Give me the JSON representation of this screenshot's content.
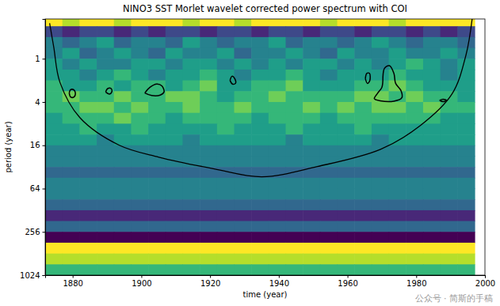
{
  "chart_data": {
    "type": "heatmap",
    "title": "NINO3 SST Morlet wavelet corrected power spectrum with COI",
    "x_label": "time (year)",
    "y_label": "period (year)",
    "annotations": [
      "公众号 · 简斯的手稿"
    ],
    "log": "y",
    "xlim": [
      1872,
      2000
    ],
    "ylim": [
      0.28,
      1024
    ],
    "xticks": [
      1880,
      1900,
      1920,
      1940,
      1960,
      1980,
      2000
    ],
    "yticks": [
      1,
      4,
      16,
      64,
      256,
      1024
    ],
    "zlim": [
      0,
      9
    ],
    "x": [
      1874.5,
      1879.5,
      1884.5,
      1889.5,
      1894.5,
      1899.5,
      1904.5,
      1909.5,
      1914.5,
      1919.5,
      1924.5,
      1929.5,
      1934.5,
      1939.5,
      1944.5,
      1949.5,
      1954.5,
      1959.5,
      1964.5,
      1969.5,
      1974.5,
      1979.5,
      1984.5,
      1989.5,
      1994.5
    ],
    "y": [
      0.297,
      0.42,
      0.595,
      0.841,
      1.19,
      1.68,
      2.38,
      3.36,
      4.76,
      6.73,
      9.51,
      13.5,
      19.0,
      26.9,
      38.1,
      53.8,
      76.1,
      108,
      152,
      215,
      304,
      431,
      609,
      861
    ],
    "z": [
      [
        9,
        8,
        9,
        9,
        8,
        9,
        9,
        9,
        8,
        9,
        9,
        8,
        9,
        9,
        9,
        9,
        8,
        9,
        9,
        9,
        8,
        9,
        9,
        9,
        9
      ],
      [
        2,
        1,
        2,
        2,
        1,
        2,
        1,
        2,
        2,
        1,
        2,
        2,
        1,
        2,
        2,
        1,
        2,
        2,
        1,
        2,
        2,
        1,
        2,
        1,
        2
      ],
      [
        4,
        3,
        4,
        5,
        3,
        4,
        4,
        3,
        5,
        4,
        3,
        4,
        4,
        5,
        3,
        4,
        4,
        3,
        4,
        5,
        4,
        3,
        4,
        4,
        3
      ],
      [
        4,
        5,
        3,
        4,
        5,
        4,
        3,
        5,
        4,
        4,
        5,
        3,
        4,
        4,
        5,
        4,
        3,
        5,
        4,
        4,
        5,
        4,
        4,
        5,
        4
      ],
      [
        5,
        4,
        5,
        4,
        4,
        5,
        5,
        4,
        5,
        5,
        4,
        5,
        4,
        5,
        4,
        5,
        5,
        4,
        5,
        4,
        5,
        6,
        5,
        4,
        5
      ],
      [
        5,
        5,
        4,
        5,
        6,
        5,
        4,
        5,
        5,
        6,
        5,
        4,
        5,
        5,
        6,
        5,
        4,
        5,
        5,
        5,
        6,
        5,
        5,
        4,
        5
      ],
      [
        6,
        5,
        5,
        6,
        5,
        6,
        6,
        5,
        6,
        7,
        5,
        5,
        6,
        6,
        7,
        5,
        5,
        5,
        6,
        6,
        7,
        6,
        5,
        5,
        5
      ],
      [
        6,
        7,
        6,
        6,
        7,
        6,
        6,
        7,
        7,
        6,
        5,
        6,
        6,
        7,
        6,
        6,
        6,
        6,
        7,
        7,
        6,
        7,
        6,
        6,
        5
      ],
      [
        6,
        6,
        7,
        7,
        6,
        7,
        6,
        6,
        7,
        6,
        6,
        7,
        6,
        6,
        6,
        7,
        6,
        7,
        6,
        7,
        7,
        6,
        7,
        6,
        6
      ],
      [
        5,
        6,
        6,
        6,
        7,
        6,
        6,
        5,
        6,
        6,
        6,
        6,
        5,
        6,
        6,
        6,
        5,
        6,
        6,
        6,
        6,
        6,
        6,
        5,
        5
      ],
      [
        5,
        5,
        6,
        5,
        5,
        6,
        5,
        5,
        5,
        5,
        6,
        5,
        5,
        5,
        6,
        5,
        5,
        5,
        6,
        5,
        5,
        5,
        5,
        5,
        5
      ],
      [
        5,
        5,
        5,
        4,
        5,
        5,
        5,
        5,
        4,
        5,
        5,
        5,
        5,
        5,
        4,
        5,
        5,
        5,
        5,
        4,
        5,
        5,
        5,
        5,
        5
      ],
      [
        4,
        4,
        4,
        4,
        4,
        4,
        4,
        4,
        4,
        4,
        4,
        4,
        4,
        4,
        4,
        4,
        4,
        4,
        4,
        4,
        4,
        4,
        4,
        4,
        4
      ],
      [
        4,
        4,
        4,
        4,
        4,
        4,
        4,
        4,
        4,
        4,
        4,
        4,
        4,
        4,
        4,
        4,
        4,
        4,
        4,
        4,
        4,
        4,
        4,
        4,
        4
      ],
      [
        3,
        3,
        3,
        3,
        3,
        3,
        3,
        3,
        3,
        3,
        3,
        3,
        3,
        3,
        3,
        3,
        3,
        3,
        3,
        3,
        3,
        3,
        3,
        3,
        3
      ],
      [
        4,
        4,
        4,
        4,
        4,
        4,
        4,
        4,
        4,
        4,
        4,
        4,
        4,
        4,
        4,
        4,
        4,
        4,
        4,
        4,
        4,
        4,
        4,
        4,
        4
      ],
      [
        4,
        4,
        4,
        4,
        4,
        4,
        4,
        4,
        4,
        4,
        4,
        4,
        4,
        4,
        4,
        4,
        4,
        4,
        4,
        4,
        4,
        4,
        4,
        4,
        4
      ],
      [
        3,
        3,
        3,
        3,
        3,
        3,
        3,
        3,
        3,
        3,
        3,
        3,
        3,
        3,
        3,
        3,
        3,
        3,
        3,
        3,
        3,
        3,
        3,
        3,
        3
      ],
      [
        1,
        1,
        1,
        1,
        1,
        1,
        1,
        1,
        1,
        1,
        1,
        1,
        1,
        1,
        1,
        1,
        1,
        1,
        1,
        1,
        1,
        1,
        1,
        1,
        1
      ],
      [
        3,
        3,
        3,
        3,
        3,
        3,
        3,
        3,
        3,
        3,
        3,
        3,
        3,
        3,
        3,
        3,
        3,
        3,
        3,
        3,
        3,
        3,
        3,
        3,
        3
      ],
      [
        0,
        0,
        0,
        0,
        0,
        0,
        0,
        0,
        0,
        0,
        0,
        0,
        0,
        0,
        0,
        0,
        0,
        0,
        0,
        0,
        0,
        0,
        0,
        0,
        0
      ],
      [
        9,
        9,
        9,
        9,
        9,
        9,
        9,
        9,
        9,
        9,
        9,
        9,
        9,
        9,
        9,
        9,
        9,
        9,
        9,
        9,
        9,
        9,
        9,
        9,
        9
      ],
      [
        8,
        8,
        8,
        8,
        8,
        8,
        8,
        8,
        8,
        8,
        8,
        8,
        8,
        8,
        8,
        8,
        8,
        8,
        8,
        8,
        8,
        8,
        8,
        8,
        8
      ],
      [
        6,
        6,
        6,
        6,
        6,
        6,
        6,
        6,
        6,
        6,
        6,
        6,
        6,
        6,
        6,
        6,
        6,
        6,
        6,
        6,
        6,
        6,
        6,
        6,
        6
      ]
    ],
    "coi": {
      "x": [
        1873.3,
        1874.5,
        1876.3,
        1882.1,
        1893.6,
        1905.1,
        1921.2,
        1935.1,
        1951.2,
        1969.6,
        1981.2,
        1990.4,
        1994.5,
        1996.4
      ],
      "y": [
        0.32,
        0.69,
        2.13,
        6.6,
        16,
        23.4,
        34,
        43.8,
        31.6,
        18.2,
        8.5,
        3.1,
        0.88,
        0.25
      ]
    },
    "contours": [
      {
        "x": [
          1879.0,
          1879.4,
          1880.3,
          1880.8,
          1880.4,
          1879.4,
          1879.0
        ],
        "y": [
          3.0,
          2.7,
          2.7,
          3.0,
          3.4,
          3.4,
          3.0
        ]
      },
      {
        "x": [
          1889.6,
          1890.2,
          1891.2,
          1891.4,
          1890.7,
          1889.6
        ],
        "y": [
          2.9,
          2.6,
          2.6,
          2.9,
          3.1,
          2.9
        ]
      },
      {
        "x": [
          1901.0,
          1902.5,
          1904.5,
          1906.0,
          1906.6,
          1905.5,
          1903.0,
          1901.0
        ],
        "y": [
          3.0,
          2.5,
          2.25,
          2.4,
          2.9,
          3.2,
          3.25,
          3.0
        ]
      },
      {
        "x": [
          1925.8,
          1926.4,
          1927.2,
          1927.4,
          1926.5,
          1925.8
        ],
        "y": [
          2.0,
          1.75,
          1.9,
          2.2,
          2.25,
          2.0
        ]
      },
      {
        "x": [
          1965.2,
          1965.6,
          1966.4,
          1966.5,
          1965.8,
          1965.2
        ],
        "y": [
          1.9,
          1.6,
          1.6,
          2.0,
          2.2,
          1.9
        ]
      },
      {
        "x": [
          1970.3,
          1970.8,
          1972.2,
          1973.5,
          1974.0,
          1975.6,
          1975.8,
          1973.5,
          1969.5,
          1967.8,
          1968.8,
          1970.0,
          1970.3
        ],
        "y": [
          1.8,
          1.35,
          1.25,
          1.6,
          2.2,
          2.8,
          3.5,
          3.9,
          3.85,
          3.6,
          3.0,
          2.5,
          1.8
        ]
      },
      {
        "x": [
          1986.8,
          1987.8,
          1988.8,
          1987.8,
          1986.8
        ],
        "y": [
          3.8,
          3.65,
          3.8,
          3.95,
          3.8
        ]
      }
    ]
  }
}
